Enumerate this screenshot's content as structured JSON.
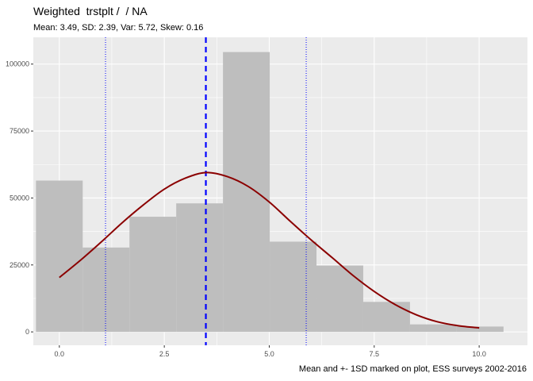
{
  "chart_data": {
    "type": "bar",
    "title": "Weighted  trstplt /  / NA",
    "subtitle": "Mean: 3.49, SD: 2.39, Var: 5.72, Skew: 0.16",
    "caption": "Mean and +- 1SD marked on plot, ESS surveys 2002-2016",
    "xlabel": "",
    "ylabel": "",
    "grid": true,
    "xlim": [
      -0.62,
      11.15
    ],
    "ylim": [
      -5000,
      110000
    ],
    "x_ticks": [
      0,
      2.5,
      5,
      7.5,
      10
    ],
    "x_tick_labels": [
      "0.0",
      "2.5",
      "5.0",
      "7.5",
      "10.0"
    ],
    "y_ticks": [
      0,
      25000,
      50000,
      75000,
      100000
    ],
    "y_tick_labels": [
      "0",
      "25000",
      "50000",
      "75000",
      "100000"
    ],
    "bin_width": 1.1136,
    "bins": [
      {
        "x": 0.0,
        "value": 56500
      },
      {
        "x": 1.1136,
        "value": 31500
      },
      {
        "x": 2.2273,
        "value": 43000
      },
      {
        "x": 3.3409,
        "value": 48000
      },
      {
        "x": 4.4545,
        "value": 104500
      },
      {
        "x": 5.5682,
        "value": 33700
      },
      {
        "x": 6.6818,
        "value": 24800
      },
      {
        "x": 7.7955,
        "value": 11200
      },
      {
        "x": 8.9091,
        "value": 2800
      },
      {
        "x": 10.0227,
        "value": 2000
      }
    ],
    "mean": 3.49,
    "sd": 2.39,
    "mean_line": 3.49,
    "sd_lines": [
      1.1,
      5.88
    ],
    "density_curve": {
      "x": [
        0,
        0.5,
        1,
        1.5,
        2,
        2.5,
        3,
        3.5,
        4,
        4.5,
        5,
        5.5,
        6,
        6.5,
        7,
        7.5,
        8,
        8.5,
        9,
        9.5,
        10
      ],
      "y": [
        20300,
        26700,
        33600,
        40800,
        47400,
        53300,
        57400,
        59500,
        58000,
        54300,
        48500,
        41300,
        34300,
        27700,
        21000,
        15100,
        10200,
        6400,
        3800,
        2300,
        1500
      ]
    },
    "colors": {
      "panel": "#ebebeb",
      "grid": "#ffffff",
      "bars": "#bebebe",
      "curve": "#8b0000",
      "mean_line": "#0000ff",
      "sd_lines": "#0000ff"
    }
  }
}
